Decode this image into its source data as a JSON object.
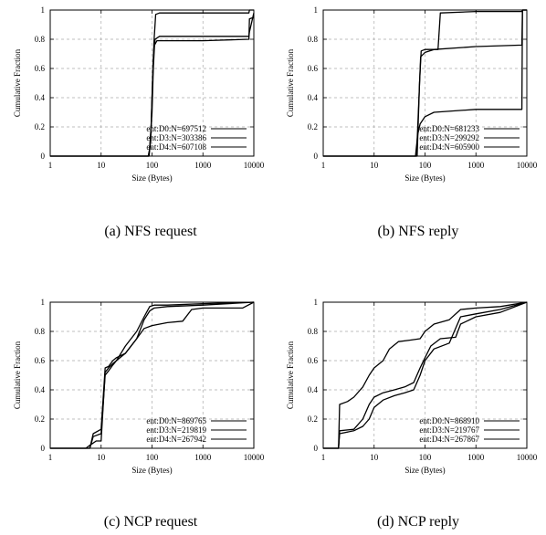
{
  "chart_data": [
    {
      "type": "line",
      "title": "",
      "caption": "(a) NFS request",
      "xlabel": "Size (Bytes)",
      "ylabel": "Cumulative Fraction",
      "xscale": "log",
      "xlim": [
        1,
        10000
      ],
      "ylim": [
        0,
        1
      ],
      "xticks": [
        1,
        10,
        100,
        1000,
        10000
      ],
      "xtick_labels": [
        "1",
        "10",
        "100",
        "1000",
        "10000"
      ],
      "yticks": [
        0,
        0.2,
        0.4,
        0.6,
        0.8,
        1
      ],
      "ytick_labels": [
        "0",
        "0.2",
        "0.4",
        "0.6",
        "0.8",
        "1"
      ],
      "grid": true,
      "legend_position": "bottom-right",
      "series": [
        {
          "name": "ent:D0:N=697512",
          "points": [
            [
              1,
              0
            ],
            [
              84,
              0
            ],
            [
              90,
              0.05
            ],
            [
              100,
              0.3
            ],
            [
              106,
              0.6
            ],
            [
              112,
              0.76
            ],
            [
              125,
              0.79
            ],
            [
              300,
              0.79
            ],
            [
              1000,
              0.79
            ],
            [
              8000,
              0.8
            ],
            [
              8200,
              0.94
            ],
            [
              10000,
              0.95
            ]
          ]
        },
        {
          "name": "ent:D3:N=303386",
          "points": [
            [
              1,
              0
            ],
            [
              88,
              0
            ],
            [
              96,
              0.2
            ],
            [
              104,
              0.6
            ],
            [
              110,
              0.8
            ],
            [
              118,
              0.97
            ],
            [
              140,
              0.98
            ],
            [
              1000,
              0.98
            ],
            [
              8000,
              0.98
            ],
            [
              8200,
              1
            ],
            [
              10000,
              1
            ]
          ]
        },
        {
          "name": "ent:D4:N=607108",
          "points": [
            [
              1,
              0
            ],
            [
              86,
              0
            ],
            [
              94,
              0.1
            ],
            [
              100,
              0.4
            ],
            [
              108,
              0.72
            ],
            [
              115,
              0.8
            ],
            [
              140,
              0.82
            ],
            [
              1000,
              0.82
            ],
            [
              8000,
              0.82
            ],
            [
              8200,
              0.85
            ],
            [
              10000,
              0.98
            ]
          ]
        }
      ]
    },
    {
      "type": "line",
      "title": "",
      "caption": "(b) NFS reply",
      "xlabel": "Size (Bytes)",
      "ylabel": "Cumulative Fraction",
      "xscale": "log",
      "xlim": [
        1,
        10000
      ],
      "ylim": [
        0,
        1
      ],
      "xticks": [
        1,
        10,
        100,
        1000,
        10000
      ],
      "xtick_labels": [
        "1",
        "10",
        "100",
        "1000",
        "10000"
      ],
      "yticks": [
        0,
        0.2,
        0.4,
        0.6,
        0.8,
        1
      ],
      "ytick_labels": [
        "0",
        "0.2",
        "0.4",
        "0.6",
        "0.8",
        "1"
      ],
      "grid": true,
      "legend_position": "bottom-right",
      "series": [
        {
          "name": "ent:D0:N=681233",
          "points": [
            [
              1,
              0
            ],
            [
              65,
              0
            ],
            [
              72,
              0.15
            ],
            [
              80,
              0.22
            ],
            [
              100,
              0.27
            ],
            [
              150,
              0.3
            ],
            [
              1000,
              0.32
            ],
            [
              8000,
              0.32
            ],
            [
              8200,
              1
            ],
            [
              10000,
              1
            ]
          ]
        },
        {
          "name": "ent:D3:N=299292",
          "points": [
            [
              1,
              0
            ],
            [
              70,
              0
            ],
            [
              78,
              0.5
            ],
            [
              84,
              0.72
            ],
            [
              100,
              0.73
            ],
            [
              180,
              0.73
            ],
            [
              200,
              0.98
            ],
            [
              1000,
              0.99
            ],
            [
              8000,
              0.99
            ],
            [
              8200,
              1
            ],
            [
              10000,
              1
            ]
          ]
        },
        {
          "name": "ent:D4:N=605900",
          "points": [
            [
              1,
              0
            ],
            [
              68,
              0
            ],
            [
              76,
              0.4
            ],
            [
              82,
              0.68
            ],
            [
              100,
              0.71
            ],
            [
              150,
              0.73
            ],
            [
              1000,
              0.75
            ],
            [
              8000,
              0.76
            ],
            [
              8200,
              1
            ],
            [
              10000,
              1
            ]
          ]
        }
      ]
    },
    {
      "type": "line",
      "title": "",
      "caption": "(c) NCP request",
      "xlabel": "Size (Bytes)",
      "ylabel": "Cumulative Fraction",
      "xscale": "log",
      "xlim": [
        1,
        10000
      ],
      "ylim": [
        0,
        1
      ],
      "xticks": [
        1,
        10,
        100,
        1000,
        10000
      ],
      "xtick_labels": [
        "1",
        "10",
        "100",
        "1000",
        "10000"
      ],
      "yticks": [
        0,
        0.2,
        0.4,
        0.6,
        0.8,
        1
      ],
      "ytick_labels": [
        "0",
        "0.2",
        "0.4",
        "0.6",
        "0.8",
        "1"
      ],
      "grid": true,
      "legend_position": "bottom-right",
      "series": [
        {
          "name": "ent:D0:N=869765",
          "points": [
            [
              1,
              0
            ],
            [
              5,
              0
            ],
            [
              6,
              0.02
            ],
            [
              8,
              0.05
            ],
            [
              10,
              0.05
            ],
            [
              12,
              0.52
            ],
            [
              14,
              0.55
            ],
            [
              17,
              0.58
            ],
            [
              20,
              0.6
            ],
            [
              30,
              0.65
            ],
            [
              50,
              0.75
            ],
            [
              70,
              0.88
            ],
            [
              90,
              0.94
            ],
            [
              110,
              0.96
            ],
            [
              200,
              0.97
            ],
            [
              1000,
              0.98
            ],
            [
              10000,
              1
            ]
          ]
        },
        {
          "name": "ent:D3:N=219819",
          "points": [
            [
              1,
              0
            ],
            [
              6,
              0
            ],
            [
              7,
              0.08
            ],
            [
              10,
              0.1
            ],
            [
              12,
              0.5
            ],
            [
              14,
              0.53
            ],
            [
              17,
              0.57
            ],
            [
              20,
              0.6
            ],
            [
              30,
              0.7
            ],
            [
              50,
              0.8
            ],
            [
              70,
              0.9
            ],
            [
              90,
              0.97
            ],
            [
              110,
              0.98
            ],
            [
              200,
              0.98
            ],
            [
              1000,
              0.99
            ],
            [
              10000,
              1
            ]
          ]
        },
        {
          "name": "ent:D4:N=267942",
          "points": [
            [
              1,
              0
            ],
            [
              6,
              0
            ],
            [
              7,
              0.1
            ],
            [
              10,
              0.13
            ],
            [
              12,
              0.55
            ],
            [
              14,
              0.56
            ],
            [
              17,
              0.6
            ],
            [
              20,
              0.62
            ],
            [
              30,
              0.65
            ],
            [
              50,
              0.75
            ],
            [
              70,
              0.82
            ],
            [
              100,
              0.84
            ],
            [
              200,
              0.86
            ],
            [
              400,
              0.87
            ],
            [
              600,
              0.95
            ],
            [
              1000,
              0.96
            ],
            [
              6000,
              0.96
            ],
            [
              10000,
              1
            ]
          ]
        }
      ]
    },
    {
      "type": "line",
      "title": "",
      "caption": "(d) NCP reply",
      "xlabel": "Size (Bytes)",
      "ylabel": "Cumulative Fraction",
      "xscale": "log",
      "xlim": [
        1,
        10000
      ],
      "ylim": [
        0,
        1
      ],
      "xticks": [
        1,
        10,
        100,
        1000,
        10000
      ],
      "xtick_labels": [
        "1",
        "10",
        "100",
        "1000",
        "10000"
      ],
      "yticks": [
        0,
        0.2,
        0.4,
        0.6,
        0.8,
        1
      ],
      "ytick_labels": [
        "0",
        "0.2",
        "0.4",
        "0.6",
        "0.8",
        "1"
      ],
      "grid": true,
      "legend_position": "bottom-right",
      "series": [
        {
          "name": "ent:D0:N=868910",
          "points": [
            [
              1,
              0
            ],
            [
              2,
              0
            ],
            [
              2.1,
              0.12
            ],
            [
              4,
              0.13
            ],
            [
              6,
              0.2
            ],
            [
              8,
              0.3
            ],
            [
              10,
              0.35
            ],
            [
              15,
              0.38
            ],
            [
              25,
              0.4
            ],
            [
              40,
              0.42
            ],
            [
              60,
              0.45
            ],
            [
              80,
              0.55
            ],
            [
              100,
              0.62
            ],
            [
              130,
              0.7
            ],
            [
              200,
              0.75
            ],
            [
              400,
              0.76
            ],
            [
              500,
              0.85
            ],
            [
              1000,
              0.9
            ],
            [
              3000,
              0.93
            ],
            [
              10000,
              1
            ]
          ]
        },
        {
          "name": "ent:D3:N=219767",
          "points": [
            [
              1,
              0
            ],
            [
              2,
              0
            ],
            [
              2.1,
              0.3
            ],
            [
              3,
              0.32
            ],
            [
              4,
              0.35
            ],
            [
              6,
              0.42
            ],
            [
              8,
              0.5
            ],
            [
              10,
              0.55
            ],
            [
              15,
              0.6
            ],
            [
              20,
              0.68
            ],
            [
              30,
              0.73
            ],
            [
              50,
              0.74
            ],
            [
              80,
              0.75
            ],
            [
              100,
              0.8
            ],
            [
              150,
              0.85
            ],
            [
              300,
              0.88
            ],
            [
              500,
              0.95
            ],
            [
              1000,
              0.96
            ],
            [
              3000,
              0.97
            ],
            [
              10000,
              1
            ]
          ]
        },
        {
          "name": "ent:D4:N=267867",
          "points": [
            [
              1,
              0
            ],
            [
              2,
              0
            ],
            [
              2.1,
              0.1
            ],
            [
              4,
              0.12
            ],
            [
              6,
              0.15
            ],
            [
              8,
              0.2
            ],
            [
              10,
              0.28
            ],
            [
              15,
              0.33
            ],
            [
              25,
              0.36
            ],
            [
              40,
              0.38
            ],
            [
              60,
              0.4
            ],
            [
              80,
              0.5
            ],
            [
              100,
              0.6
            ],
            [
              150,
              0.68
            ],
            [
              300,
              0.72
            ],
            [
              500,
              0.9
            ],
            [
              1000,
              0.92
            ],
            [
              3000,
              0.95
            ],
            [
              10000,
              1
            ]
          ]
        }
      ]
    }
  ]
}
